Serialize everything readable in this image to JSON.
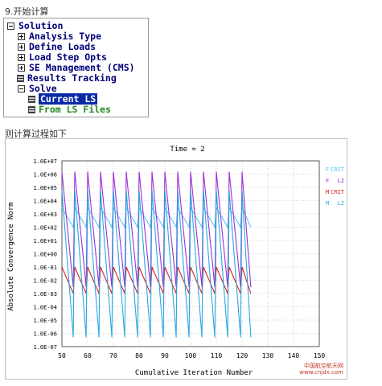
{
  "headings": {
    "step": "9.开始计算",
    "process": "则计算过程如下"
  },
  "tree": {
    "root": "Solution",
    "items": [
      {
        "label": "Analysis Type",
        "icon": "plus"
      },
      {
        "label": "Define Loads",
        "icon": "plus"
      },
      {
        "label": "Load Step Opts",
        "icon": "plus"
      },
      {
        "label": "SE Management (CMS)",
        "icon": "plus"
      },
      {
        "label": "Results Tracking",
        "icon": "doc"
      },
      {
        "label": "Solve",
        "icon": "minus"
      }
    ],
    "children": [
      {
        "label": "Current LS",
        "selected": true
      },
      {
        "label": "From LS Files",
        "selected": false
      }
    ]
  },
  "watermark": {
    "line1": "中国航空航天网",
    "line2": "www.cnjdx.com"
  },
  "chart_data": {
    "type": "line",
    "title": "Time = 2",
    "xlabel": "Cumulative Iteration Number",
    "ylabel": "Absolute Convergence Norm",
    "xlim": [
      50,
      150
    ],
    "x_ticks": [
      50,
      60,
      70,
      80,
      90,
      100,
      110,
      120,
      130,
      140,
      150
    ],
    "y_log": true,
    "ylim": [
      1e-07,
      10000000.0
    ],
    "y_tick_labels": [
      "1.0E+07",
      "1.0E+06",
      "1.0E+05",
      "1.0E+04",
      "1.0E+03",
      "1.0E+02",
      "1.0E+01",
      "1.0E+00",
      "1.0E-01",
      "1.0E-02",
      "1.0E-03",
      "1.0E-04",
      "1.0E-05",
      "1.0E-06",
      "1.0E-07"
    ],
    "grid": true,
    "legend_placement": "right",
    "cycle_starts": [
      50,
      55,
      60,
      65,
      70,
      75,
      80,
      85,
      90,
      95,
      100,
      105,
      110,
      115,
      120
    ],
    "x_end": 124,
    "series": [
      {
        "name": "F CRIT",
        "letter": "F",
        "tag": "CRIT",
        "color": "#4ec9f0",
        "cycle_peak": 3000,
        "cycle_low": 100
      },
      {
        "name": "F L2",
        "letter": "F",
        "tag": "L2",
        "color": "#9b30d9",
        "cycle_peak": 1500000,
        "cycle_low": 0.003
      },
      {
        "name": "M CRIT",
        "letter": "M",
        "tag": "CRIT",
        "color": "#d62020",
        "cycle_peak": 0.1,
        "cycle_low": 0.001
      },
      {
        "name": "M L2",
        "letter": "M",
        "tag": "L2",
        "color": "#2aa8e0",
        "cycle_peak": 60000,
        "cycle_low": 5e-07
      }
    ]
  }
}
